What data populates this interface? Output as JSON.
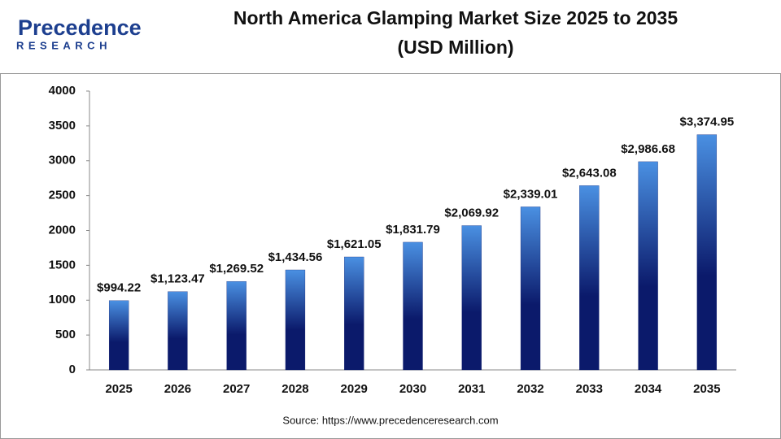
{
  "logo": {
    "name": "Precedence",
    "tagline": "RESEARCH"
  },
  "chart_data": {
    "type": "bar",
    "title": "North America Glamping Market Size 2025 to 2035",
    "subtitle": "(USD Million)",
    "categories": [
      "2025",
      "2026",
      "2027",
      "2028",
      "2029",
      "2030",
      "2031",
      "2032",
      "2033",
      "2034",
      "2035"
    ],
    "values": [
      994.22,
      1123.47,
      1269.52,
      1434.56,
      1621.05,
      1831.79,
      2069.92,
      2339.01,
      2643.08,
      2986.68,
      3374.95
    ],
    "value_labels": [
      "$994.22",
      "$1,123.47",
      "$1,269.52",
      "$1,434.56",
      "$1,621.05",
      "$1,831.79",
      "$2,069.92",
      "$2,339.01",
      "$2,643.08",
      "$2,986.68",
      "$3,374.95"
    ],
    "color": "#0b1a6b",
    "ylim": [
      0,
      4000
    ],
    "yticks": [
      0,
      500,
      1000,
      1500,
      2000,
      2500,
      3000,
      3500,
      4000
    ],
    "grid": false,
    "source": "Source: https://www.precedenceresearch.com"
  }
}
